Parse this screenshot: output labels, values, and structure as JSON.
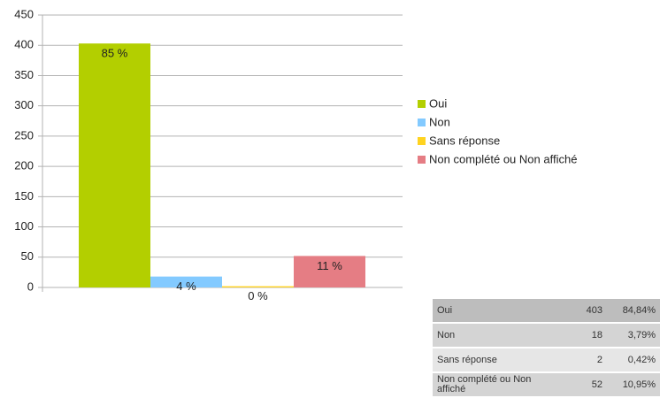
{
  "chart_data": {
    "type": "bar",
    "categories": [
      "Oui",
      "Non",
      "Sans réponse",
      "Non complété ou Non affiché"
    ],
    "values": [
      403,
      18,
      2,
      52
    ],
    "value_labels": [
      "85 %",
      "4 %",
      "0 %",
      "11 %"
    ],
    "colors": [
      "#b3cf00",
      "#83caff",
      "#ffd320",
      "#e57d84"
    ],
    "ylim": [
      0,
      450
    ],
    "yticks": [
      0,
      50,
      100,
      150,
      200,
      250,
      300,
      350,
      400,
      450
    ],
    "grid": true,
    "legend": "right"
  },
  "table": {
    "rows": [
      [
        "Oui",
        403,
        "84,84%"
      ],
      [
        "Non",
        18,
        "3,79%"
      ],
      [
        "Sans réponse",
        2,
        "0,42%"
      ],
      [
        "Non complété ou Non affiché",
        52,
        "10,95%"
      ]
    ]
  }
}
